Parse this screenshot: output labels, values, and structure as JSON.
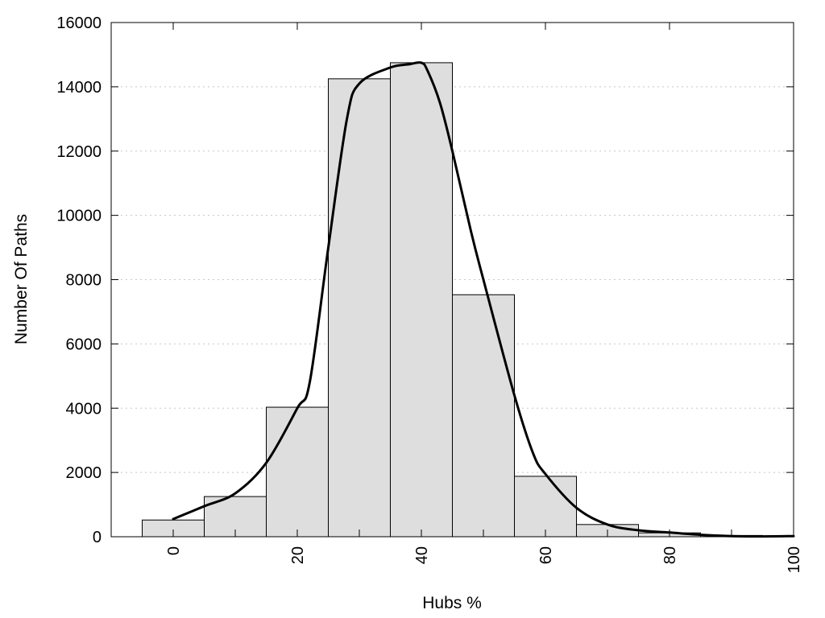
{
  "chart_data": {
    "type": "bar",
    "title": "",
    "xlabel": "Hubs %",
    "ylabel": "Number Of Paths",
    "xlim": [
      -10,
      100
    ],
    "ylim": [
      0,
      16000
    ],
    "x_ticks": [
      0,
      20,
      40,
      60,
      80,
      100
    ],
    "y_ticks": [
      0,
      2000,
      4000,
      6000,
      8000,
      10000,
      12000,
      14000,
      16000
    ],
    "x_tick_rotation": -90,
    "grid": "horizontal dotted",
    "bin_width": 10,
    "bins": [
      {
        "center": 0,
        "value": 520
      },
      {
        "center": 10,
        "value": 1250
      },
      {
        "center": 20,
        "value": 4030
      },
      {
        "center": 30,
        "value": 14250
      },
      {
        "center": 40,
        "value": 14750
      },
      {
        "center": 50,
        "value": 7530
      },
      {
        "center": 60,
        "value": 1880
      },
      {
        "center": 70,
        "value": 380
      },
      {
        "center": 80,
        "value": 120
      },
      {
        "center": 90,
        "value": 40
      },
      {
        "center": 100,
        "value": 20
      }
    ],
    "curve": {
      "x": [
        0,
        5,
        10,
        15,
        20,
        22,
        25,
        28,
        30,
        35,
        38,
        40,
        41,
        43,
        45,
        48,
        50,
        55,
        58,
        60,
        65,
        70,
        75,
        80,
        85,
        90,
        95,
        100
      ],
      "y": [
        550,
        950,
        1350,
        2300,
        4000,
        4800,
        9000,
        13000,
        14100,
        14600,
        14700,
        14750,
        14500,
        13500,
        12000,
        9500,
        8000,
        4400,
        2600,
        1950,
        900,
        380,
        200,
        130,
        60,
        20,
        10,
        20
      ]
    },
    "colors": {
      "bar_fill": "#dedede",
      "bar_stroke": "#000000",
      "curve": "#000000",
      "grid": "#c8c8c8"
    }
  }
}
